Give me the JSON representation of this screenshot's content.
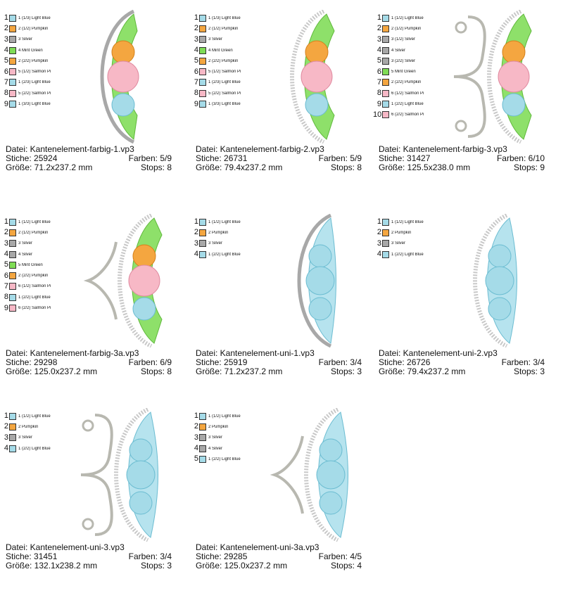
{
  "designs": [
    {
      "file": "Datei: Kantenelement-farbig-1.vp3",
      "stitches": "Stiche: 25924",
      "colors": "Farben: 5/9",
      "size": "Größe: 71.2x237.2 mm",
      "stops": "Stops: 8",
      "swatches": [
        {
          "n": "1",
          "label": "1 (1/3) Light Blue",
          "color": "#a5dbe8"
        },
        {
          "n": "2",
          "label": "2 (1/2) Pumpkin",
          "color": "#f4a640"
        },
        {
          "n": "3",
          "label": "3 Silver",
          "color": "#a8a8a8"
        },
        {
          "n": "4",
          "label": "4 Mint Green",
          "color": "#7fdc55"
        },
        {
          "n": "5",
          "label": "2 (2/2) Pumpkin",
          "color": "#f4a640"
        },
        {
          "n": "6",
          "label": "5 (1/2) Salmon Pi",
          "color": "#f7b8c6"
        },
        {
          "n": "7",
          "label": "1 (2/3) Light Blue",
          "color": "#a5dbe8"
        },
        {
          "n": "8",
          "label": "5 (2/2) Salmon Pi",
          "color": "#f7b8c6"
        },
        {
          "n": "9",
          "label": "1 (3/3) Light Blue",
          "color": "#a5dbe8"
        }
      ]
    },
    {
      "file": "Datei: Kantenelement-farbig-2.vp3",
      "stitches": "Stiche: 26731",
      "colors": "Farben: 5/9",
      "size": "Größe: 79.4x237.2 mm",
      "stops": "Stops: 8",
      "swatches": [
        {
          "n": "1",
          "label": "1 (1/3) Light Blue",
          "color": "#a5dbe8"
        },
        {
          "n": "2",
          "label": "2 (1/2) Pumpkin",
          "color": "#f4a640"
        },
        {
          "n": "3",
          "label": "3 Silver",
          "color": "#a8a8a8"
        },
        {
          "n": "4",
          "label": "4 Mint Green",
          "color": "#7fdc55"
        },
        {
          "n": "5",
          "label": "2 (2/2) Pumpkin",
          "color": "#f4a640"
        },
        {
          "n": "6",
          "label": "5 (1/2) Salmon Pi",
          "color": "#f7b8c6"
        },
        {
          "n": "7",
          "label": "1 (2/3) Light Blue",
          "color": "#a5dbe8"
        },
        {
          "n": "8",
          "label": "5 (2/2) Salmon Pi",
          "color": "#f7b8c6"
        },
        {
          "n": "9",
          "label": "1 (3/3) Light Blue",
          "color": "#a5dbe8"
        }
      ]
    },
    {
      "file": "Datei: Kantenelement-farbig-3.vp3",
      "stitches": "Stiche: 31427",
      "colors": "Farben: 6/10",
      "size": "Größe: 125.5x238.0 mm",
      "stops": "Stops: 9",
      "swatches": [
        {
          "n": "1",
          "label": "1 (1/2) Light Blue",
          "color": "#a5dbe8"
        },
        {
          "n": "2",
          "label": "2 (1/2) Pumpkin",
          "color": "#f4a640"
        },
        {
          "n": "3",
          "label": "3 (1/2) Silver",
          "color": "#a8a8a8"
        },
        {
          "n": "4",
          "label": "4 Silver",
          "color": "#a8a8a8"
        },
        {
          "n": "5",
          "label": "3 (2/2) Silver",
          "color": "#a8a8a8"
        },
        {
          "n": "6",
          "label": "5 Mint Green",
          "color": "#7fdc55"
        },
        {
          "n": "7",
          "label": "2 (2/2) Pumpkin",
          "color": "#f4a640"
        },
        {
          "n": "8",
          "label": "6 (1/2) Salmon Pi",
          "color": "#f7b8c6"
        },
        {
          "n": "9",
          "label": "1 (2/2) Light Blue",
          "color": "#a5dbe8"
        },
        {
          "n": "10",
          "label": "6 (2/2) Salmon Pi",
          "color": "#f7b8c6"
        }
      ]
    },
    {
      "file": "Datei: Kantenelement-farbig-3a.vp3",
      "stitches": "Stiche: 29298",
      "colors": "Farben: 6/9",
      "size": "Größe: 125.0x237.2 mm",
      "stops": "Stops: 8",
      "swatches": [
        {
          "n": "1",
          "label": "1 (1/2) Light Blue",
          "color": "#a5dbe8"
        },
        {
          "n": "2",
          "label": "2 (1/2) Pumpkin",
          "color": "#f4a640"
        },
        {
          "n": "3",
          "label": "3 Silver",
          "color": "#a8a8a8"
        },
        {
          "n": "4",
          "label": "4 Silver",
          "color": "#a8a8a8"
        },
        {
          "n": "5",
          "label": "5 Mint Green",
          "color": "#7fdc55"
        },
        {
          "n": "6",
          "label": "2 (2/2) Pumpkin",
          "color": "#f4a640"
        },
        {
          "n": "7",
          "label": "6 (1/2) Salmon Pi",
          "color": "#f7b8c6"
        },
        {
          "n": "8",
          "label": "1 (2/2) Light Blue",
          "color": "#a5dbe8"
        },
        {
          "n": "9",
          "label": "6 (2/2) Salmon Pi",
          "color": "#f7b8c6"
        }
      ]
    },
    {
      "file": "Datei: Kantenelement-uni-1.vp3",
      "stitches": "Stiche: 25919",
      "colors": "Farben: 3/4",
      "size": "Größe: 71.2x237.2 mm",
      "stops": "Stops: 3",
      "swatches": [
        {
          "n": "1",
          "label": "1 (1/2) Light Blue",
          "color": "#a5dbe8"
        },
        {
          "n": "2",
          "label": "2 Pumpkin",
          "color": "#f4a640"
        },
        {
          "n": "3",
          "label": "3 Silver",
          "color": "#a8a8a8"
        },
        {
          "n": "4",
          "label": "1 (2/2) Light Blue",
          "color": "#a5dbe8"
        }
      ]
    },
    {
      "file": "Datei: Kantenelement-uni-2.vp3",
      "stitches": "Stiche: 26726",
      "colors": "Farben: 3/4",
      "size": "Größe: 79.4x237.2 mm",
      "stops": "Stops: 3",
      "swatches": [
        {
          "n": "1",
          "label": "1 (1/2) Light Blue",
          "color": "#a5dbe8"
        },
        {
          "n": "2",
          "label": "2 Pumpkin",
          "color": "#f4a640"
        },
        {
          "n": "3",
          "label": "3 Silver",
          "color": "#a8a8a8"
        },
        {
          "n": "4",
          "label": "1 (2/2) Light Blue",
          "color": "#a5dbe8"
        }
      ]
    },
    {
      "file": "Datei: Kantenelement-uni-3.vp3",
      "stitches": "Stiche: 31451",
      "colors": "Farben: 3/4",
      "size": "Größe: 132.1x238.2 mm",
      "stops": "Stops: 3",
      "swatches": [
        {
          "n": "1",
          "label": "1 (1/2) Light Blue",
          "color": "#a5dbe8"
        },
        {
          "n": "2",
          "label": "2 Pumpkin",
          "color": "#f4a640"
        },
        {
          "n": "3",
          "label": "3 Silver",
          "color": "#a8a8a8"
        },
        {
          "n": "4",
          "label": "1 (2/2) Light Blue",
          "color": "#a5dbe8"
        }
      ]
    },
    {
      "file": "Datei: Kantenelement-uni-3a.vp3",
      "stitches": "Stiche: 29285",
      "colors": "Farben: 4/5",
      "size": "Größe: 125.0x237.2 mm",
      "stops": "Stops: 4",
      "swatches": [
        {
          "n": "1",
          "label": "1 (1/2) Light Blue",
          "color": "#a5dbe8"
        },
        {
          "n": "2",
          "label": "2 Pumpkin",
          "color": "#f4a640"
        },
        {
          "n": "3",
          "label": "3 Silver",
          "color": "#a8a8a8"
        },
        {
          "n": "4",
          "label": "4 Silver",
          "color": "#a8a8a8"
        },
        {
          "n": "5",
          "label": "1 (2/2) Light Blue",
          "color": "#a5dbe8"
        }
      ]
    }
  ]
}
